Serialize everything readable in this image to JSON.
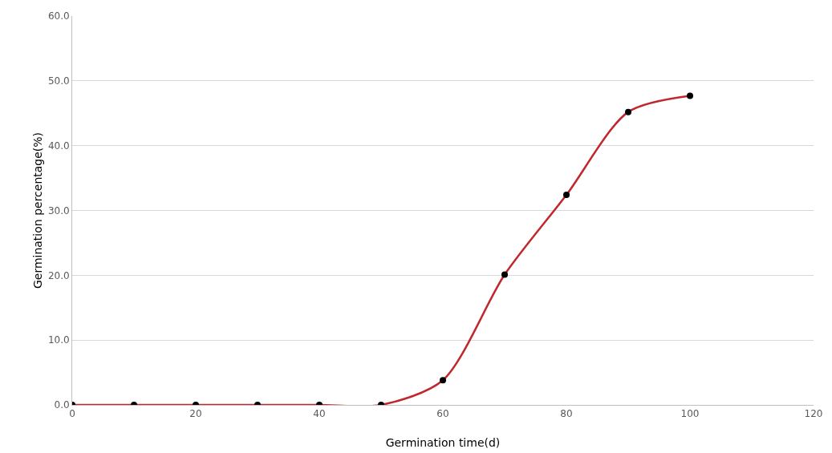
{
  "chart_data": {
    "type": "line",
    "xlabel": "Germination time(d)",
    "ylabel": "Germination percentage(%)",
    "x": [
      0,
      10,
      20,
      30,
      40,
      50,
      60,
      70,
      80,
      90,
      100
    ],
    "series": [
      {
        "color": "#c0282d",
        "colors": [
          "#000000",
          "#000000",
          "#000000",
          "#000000",
          "#000000",
          "#000000",
          "#000000",
          "#000000",
          "#000000",
          "#000000",
          "#000000"
        ],
        "values": [
          0,
          0,
          0,
          0,
          0,
          0,
          3.8,
          20.1,
          32.4,
          45.2,
          47.7
        ]
      }
    ],
    "xlim": [
      0,
      120
    ],
    "xticks": [
      0,
      20,
      40,
      60,
      80,
      100,
      120
    ],
    "ylim": [
      0,
      60
    ],
    "yticks": [
      {
        "value": 0,
        "label": "0.0"
      },
      {
        "value": 10,
        "label": "10.0"
      },
      {
        "value": 20,
        "label": "20.0"
      },
      {
        "value": 30,
        "label": "30.0"
      },
      {
        "value": 40,
        "label": "40.0"
      },
      {
        "value": 50,
        "label": "50.0"
      },
      {
        "value": 60,
        "label": "60.0"
      }
    ],
    "grid": "y",
    "legend": false,
    "marker": "circle",
    "line_style": "solid"
  }
}
